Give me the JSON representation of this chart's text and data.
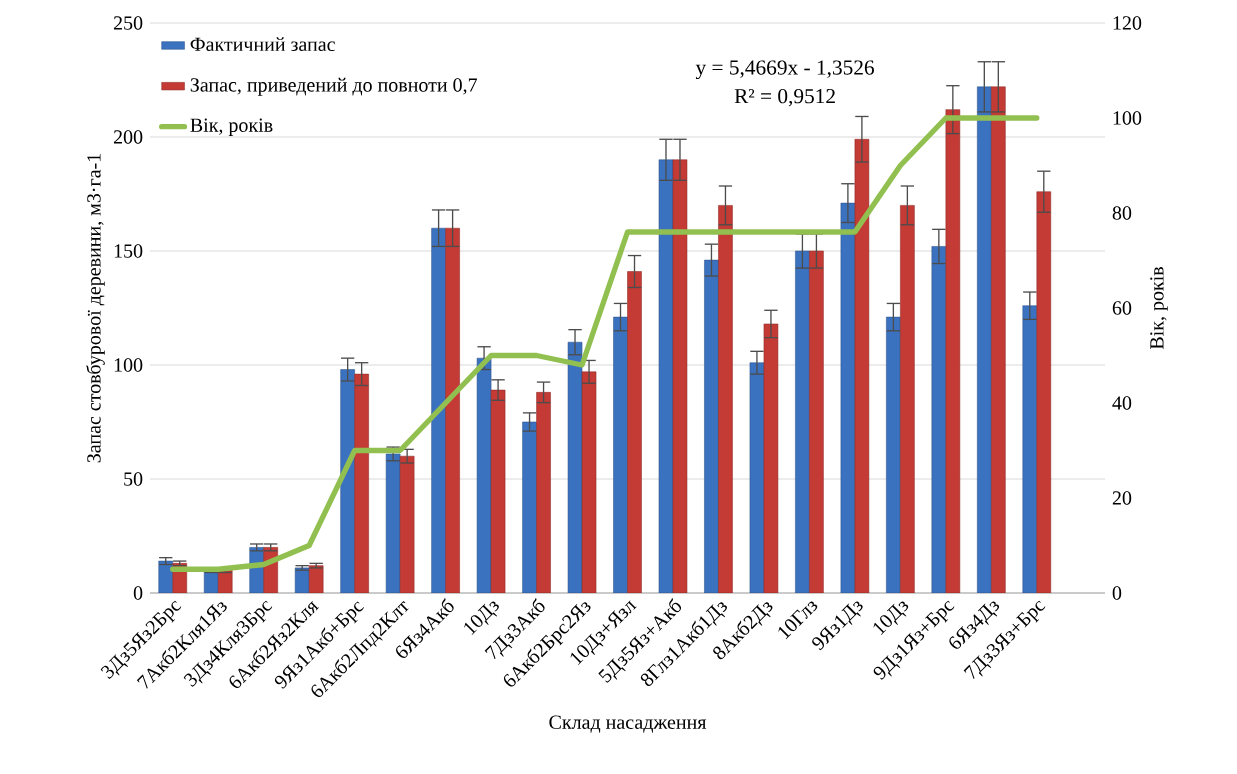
{
  "chart_data": {
    "type": "bar",
    "xlabel": "Склад насадження",
    "ylabel": "Запас стовбурової деревини, м3·га-1",
    "y2label": "Вік, років",
    "categories": [
      "3Дз5Яз2Брс",
      "7Акб2Кля1Яз",
      "3Дз4Кля3Брс",
      "6Акб2Яз2Кля",
      "9Яз1Акб+Брс",
      "6Акб2Лпд2Клт",
      "6Яз4Акб",
      "10Дз",
      "7Дз3Акб",
      "6Акб2Брс2Яз",
      "10Дз+Язл",
      "5Дз5Яз+Акб",
      "8Глз1Акб1Дз",
      "8Акб2Дз",
      "10Глз",
      "9Яз1Дз",
      "10Дз",
      "9Дз1Яз+Брс",
      "6Яз4Дз",
      "7Дз3Яз+Брс",
      null
    ],
    "series": [
      {
        "name": "Фактичний запас",
        "color": "#3b72c0",
        "values": [
          14,
          10,
          20,
          11,
          98,
          61,
          160,
          103,
          75,
          110,
          121,
          190,
          146,
          101,
          150,
          171,
          121,
          152,
          222,
          126,
          null
        ],
        "errors": [
          1.5,
          1,
          1.5,
          1,
          5,
          3,
          8,
          5,
          4,
          5.5,
          6,
          9,
          7,
          5,
          7.5,
          8.5,
          6,
          7.5,
          11,
          6,
          null
        ]
      },
      {
        "name": "Запас, приведений до повноти 0,7",
        "color": "#c43a35",
        "values": [
          13,
          10,
          20,
          12,
          96,
          60,
          160,
          89,
          88,
          97,
          141,
          190,
          170,
          118,
          150,
          199,
          170,
          212,
          222,
          176,
          null
        ],
        "errors": [
          1,
          1,
          1.5,
          1,
          5,
          3,
          8,
          4.5,
          4.5,
          5,
          7,
          9,
          8.5,
          6,
          7.5,
          10,
          8.5,
          10.5,
          11,
          9,
          null
        ]
      },
      {
        "name": "Вік, років",
        "type": "line",
        "axis": "y2",
        "color": "#92c050",
        "values": [
          5,
          5,
          6,
          10,
          30,
          30,
          40,
          50,
          50,
          48,
          76,
          76,
          76,
          76,
          76,
          76,
          90,
          100,
          100,
          100,
          null
        ]
      }
    ],
    "ylim": [
      0,
      250
    ],
    "yticks": [
      0,
      50,
      100,
      150,
      200,
      250
    ],
    "y2lim": [
      0,
      120
    ],
    "y2ticks": [
      0,
      20,
      40,
      60,
      80,
      100,
      120
    ],
    "grid": "y",
    "legend": "top left",
    "annotations": [
      "y = 5,4669x - 1,3526",
      "R² = 0,9512"
    ]
  }
}
